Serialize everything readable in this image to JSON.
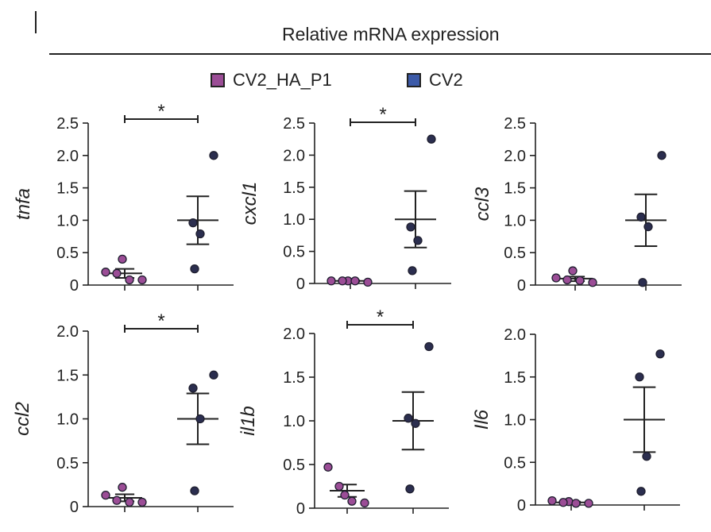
{
  "header": {
    "title": "Relative mRNA expression"
  },
  "legend": {
    "items": [
      {
        "label": "CV2_HA_P1",
        "color": "#9b4d96"
      },
      {
        "label": "CV2",
        "color": "#3c5aa8"
      }
    ]
  },
  "colors": {
    "group1_point": "#9b4d96",
    "group2_point": "#2b2e4f",
    "ink": "#222222"
  },
  "chart_data": [
    {
      "type": "scatter",
      "gene": "tnfa",
      "ylabel": "tnfa",
      "ylim": [
        0,
        2.5
      ],
      "yticks": [
        "0",
        "0.5",
        "1.0",
        "1.5",
        "2.0",
        "2.5"
      ],
      "groups": [
        "CV2_HA_P1",
        "CV2"
      ],
      "series": [
        {
          "name": "CV2_HA_P1",
          "values": [
            0.2,
            0.4,
            0.18,
            0.08,
            0.08
          ],
          "mean": 0.18,
          "sem_low": 0.11,
          "sem_high": 0.25
        },
        {
          "name": "CV2",
          "values": [
            2.0,
            0.96,
            0.79,
            0.25
          ],
          "mean": 1.0,
          "sem_low": 0.63,
          "sem_high": 1.37
        }
      ],
      "significance": "*"
    },
    {
      "type": "scatter",
      "gene": "cxcl1",
      "ylabel": "cxcl1",
      "ylim": [
        0,
        2.5
      ],
      "yticks": [
        "0",
        "0.5",
        "1.0",
        "1.5",
        "2.0",
        "2.5"
      ],
      "groups": [
        "CV2_HA_P1",
        "CV2"
      ],
      "series": [
        {
          "name": "CV2_HA_P1",
          "values": [
            0.04,
            0.04,
            0.04,
            0.04,
            0.02
          ],
          "mean": 0.04,
          "sem_low": 0.03,
          "sem_high": 0.05
        },
        {
          "name": "CV2",
          "values": [
            2.25,
            0.88,
            0.67,
            0.2
          ],
          "mean": 1.0,
          "sem_low": 0.56,
          "sem_high": 1.44
        }
      ],
      "significance": "*"
    },
    {
      "type": "scatter",
      "gene": "ccl3",
      "ylabel": "ccl3",
      "ylim": [
        0,
        2.5
      ],
      "yticks": [
        "0",
        "0.5",
        "1.0",
        "1.5",
        "2.0",
        "2.5"
      ],
      "groups": [
        "CV2_HA_P1",
        "CV2"
      ],
      "series": [
        {
          "name": "CV2_HA_P1",
          "values": [
            0.11,
            0.22,
            0.08,
            0.07,
            0.04
          ],
          "mean": 0.1,
          "sem_low": 0.06,
          "sem_high": 0.13
        },
        {
          "name": "CV2",
          "values": [
            2.0,
            1.05,
            0.9,
            0.04
          ],
          "mean": 1.0,
          "sem_low": 0.6,
          "sem_high": 1.4
        }
      ],
      "significance": ""
    },
    {
      "type": "scatter",
      "gene": "ccl2",
      "ylabel": "ccl2",
      "ylim": [
        0,
        2.0
      ],
      "yticks": [
        "0",
        "0.5",
        "1.0",
        "1.5",
        "2.0"
      ],
      "groups": [
        "CV2_HA_P1",
        "CV2"
      ],
      "series": [
        {
          "name": "CV2_HA_P1",
          "values": [
            0.13,
            0.22,
            0.07,
            0.05,
            0.05
          ],
          "mean": 0.1,
          "sem_low": 0.06,
          "sem_high": 0.14
        },
        {
          "name": "CV2",
          "values": [
            1.5,
            1.35,
            1.0,
            0.18
          ],
          "mean": 1.0,
          "sem_low": 0.71,
          "sem_high": 1.29
        }
      ],
      "significance": "*"
    },
    {
      "type": "scatter",
      "gene": "il1b",
      "ylabel": "il1b",
      "ylim": [
        0,
        2.0
      ],
      "yticks": [
        "0",
        "0.5",
        "1.0",
        "1.5",
        "2.0"
      ],
      "groups": [
        "CV2_HA_P1",
        "CV2"
      ],
      "series": [
        {
          "name": "CV2_HA_P1",
          "values": [
            0.47,
            0.15,
            0.25,
            0.08,
            0.06
          ],
          "mean": 0.2,
          "sem_low": 0.13,
          "sem_high": 0.27
        },
        {
          "name": "CV2",
          "values": [
            1.85,
            1.03,
            0.97,
            0.22
          ],
          "mean": 1.0,
          "sem_low": 0.67,
          "sem_high": 1.33
        }
      ],
      "significance": "*"
    },
    {
      "type": "scatter",
      "gene": "Il6",
      "ylabel": "Il6",
      "ylim": [
        0,
        2.0
      ],
      "yticks": [
        "0",
        "0.5",
        "1.0",
        "1.5",
        "2.0"
      ],
      "groups": [
        "CV2_HA_P1",
        "CV2"
      ],
      "series": [
        {
          "name": "CV2_HA_P1",
          "values": [
            0.05,
            0.04,
            0.03,
            0.02,
            0.02
          ],
          "mean": 0.03,
          "sem_low": 0.02,
          "sem_high": 0.04
        },
        {
          "name": "CV2",
          "values": [
            1.77,
            1.5,
            0.57,
            0.16
          ],
          "mean": 1.0,
          "sem_low": 0.62,
          "sem_high": 1.38
        }
      ],
      "significance": ""
    }
  ]
}
